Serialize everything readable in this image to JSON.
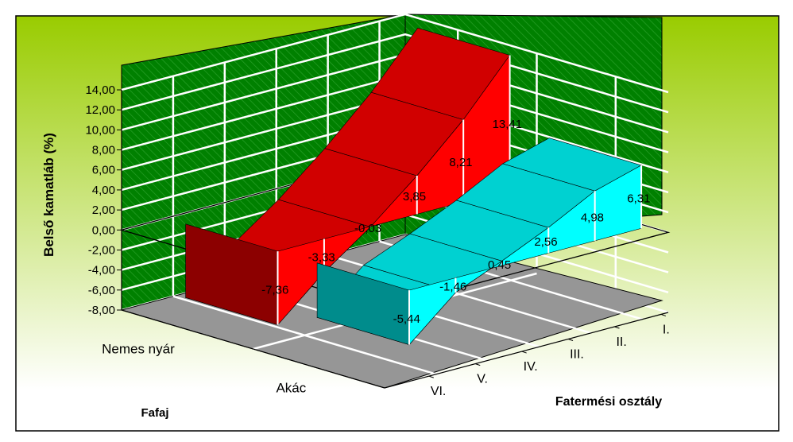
{
  "chart_data": {
    "type": "line",
    "style": "3d-ribbon",
    "title": "",
    "ylabel": "Belső kamatláb (%)",
    "xlabel": "Fatermési osztály",
    "zlabel": "Fafaj",
    "ylim": [
      -8,
      14
    ],
    "y_ticks": [
      "14,00",
      "12,00",
      "10,00",
      "8,00",
      "6,00",
      "4,00",
      "2,00",
      "0,00",
      "-2,00",
      "-4,00",
      "-6,00",
      "-8,00"
    ],
    "categories": [
      "VI.",
      "V.",
      "IV.",
      "III.",
      "II.",
      "I."
    ],
    "series": [
      {
        "name": "Nemes nyár",
        "values": [
          -7.36,
          -3.33,
          -0.03,
          3.85,
          8.21,
          13.41
        ],
        "labels": [
          "-7,36",
          "-3,33",
          "-0,03",
          "3,85",
          "8,21",
          "13,41"
        ],
        "color": "#ff0000"
      },
      {
        "name": "Akác",
        "values": [
          -5.44,
          -1.46,
          0.45,
          2.56,
          4.98,
          6.31
        ],
        "labels": [
          "-5,44",
          "-1,46",
          "0,45",
          "2,56",
          "4,98",
          "6,31"
        ],
        "color": "#00ffff"
      }
    ],
    "grid": true,
    "legend": "none",
    "colors": {
      "background_top": "#99cc00",
      "background_bottom": "#ffffff",
      "walls": "#008000",
      "floor": "#969696",
      "gridlines": "#ffffff"
    }
  }
}
